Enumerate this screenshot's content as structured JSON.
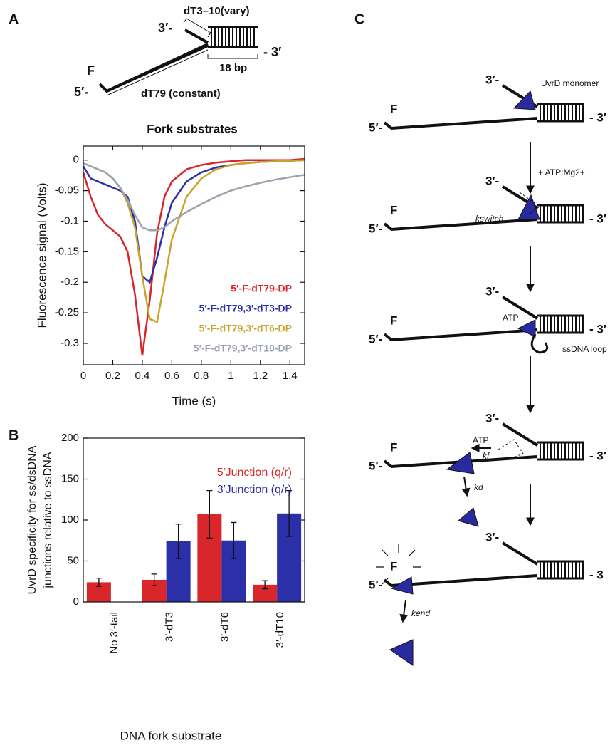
{
  "panel_labels": [
    "A",
    "B",
    "C"
  ],
  "diagram_a": {
    "labels": [
      "3′-",
      "dT3–10(vary)",
      "F",
      "5′-",
      "dT79 (constant)",
      "18 bp",
      "- 3′"
    ]
  },
  "chart_data": [
    {
      "type": "line",
      "title": "Fork substrates",
      "x_label": "Time (s)",
      "y_label": "Fluorescence signal (Volts)",
      "x": [
        0,
        0.05,
        0.1,
        0.15,
        0.2,
        0.25,
        0.3,
        0.35,
        0.4,
        0.45,
        0.5,
        0.55,
        0.6,
        0.7,
        0.8,
        0.9,
        1.0,
        1.1,
        1.2,
        1.3,
        1.4,
        1.5
      ],
      "xlim": [
        0,
        1.5
      ],
      "ylim": [
        -0.335,
        0.023
      ],
      "xticks": [
        0,
        0.2,
        0.4,
        0.6,
        0.8,
        1,
        1.2,
        1.4
      ],
      "yticks": [
        0,
        -0.05,
        -0.1,
        -0.15,
        -0.2,
        -0.25,
        -0.3
      ],
      "series": [
        {
          "name": "5′-F-dT79-DP",
          "color": "#d9262a",
          "values": [
            -0.02,
            -0.06,
            -0.09,
            -0.105,
            -0.115,
            -0.125,
            -0.15,
            -0.22,
            -0.32,
            -0.23,
            -0.12,
            -0.06,
            -0.035,
            -0.015,
            -0.008,
            -0.004,
            -0.002,
            0,
            0,
            0,
            0,
            0.002
          ]
        },
        {
          "name": "5′-F-dT79,3′-dT3-DP",
          "color": "#2b2fa8",
          "values": [
            -0.01,
            -0.03,
            -0.035,
            -0.04,
            -0.045,
            -0.05,
            -0.06,
            -0.1,
            -0.19,
            -0.2,
            -0.16,
            -0.11,
            -0.07,
            -0.035,
            -0.02,
            -0.012,
            -0.008,
            -0.005,
            -0.003,
            -0.002,
            -0.001,
            0
          ]
        },
        {
          "name": "5′-F-dT79,3′-dT6-DP",
          "color": "#c9a42a",
          "values": [
            -0.005,
            -0.01,
            -0.015,
            -0.02,
            -0.03,
            -0.045,
            -0.07,
            -0.11,
            -0.19,
            -0.26,
            -0.265,
            -0.2,
            -0.13,
            -0.06,
            -0.03,
            -0.015,
            -0.008,
            -0.005,
            -0.003,
            -0.002,
            -0.001,
            0
          ]
        },
        {
          "name": "5′-F-dT79,3′-dT10-DP",
          "color": "#9aa3ad",
          "values": [
            -0.005,
            -0.01,
            -0.015,
            -0.02,
            -0.03,
            -0.045,
            -0.065,
            -0.09,
            -0.11,
            -0.115,
            -0.115,
            -0.11,
            -0.1,
            -0.085,
            -0.072,
            -0.06,
            -0.05,
            -0.043,
            -0.037,
            -0.032,
            -0.028,
            -0.024
          ]
        }
      ]
    },
    {
      "type": "bar",
      "x_label": "DNA fork substrate",
      "y_label": [
        "UvrD specificity for ss/dsDNA",
        "junctions relative to ssDNA"
      ],
      "categories": [
        "No 3′-tail",
        "3′-dT3",
        "3′-dT6",
        "3′-dT10"
      ],
      "ylim": [
        0,
        200
      ],
      "yticks": [
        0,
        50,
        100,
        150,
        200
      ],
      "series": [
        {
          "name": "5′Junction (q/r)",
          "color": "#d9262a",
          "values": [
            24,
            27,
            107,
            21
          ],
          "errors": [
            5,
            7,
            29,
            5
          ]
        },
        {
          "name": "3′Junction (q/r)",
          "color": "#2b2fa8",
          "values": [
            null,
            74,
            75,
            108
          ],
          "errors": [
            null,
            21,
            22,
            28
          ]
        }
      ]
    }
  ],
  "diagram_c": {
    "steps": [
      {
        "labels": [
          "3′-",
          "F",
          "5′-",
          "- 3′",
          "UvrD monomer"
        ]
      },
      {
        "labels": [
          "3′-",
          "F",
          "5′-",
          "- 3′",
          "kswitch"
        ]
      },
      {
        "labels": [
          "3′-",
          "F",
          "5′-",
          "- 3′",
          "ATP",
          "ssDNA loop"
        ]
      },
      {
        "labels": [
          "3′-",
          "F",
          "5′-",
          "- 3′",
          "ATP",
          "kf",
          "kd"
        ]
      },
      {
        "labels": [
          "3′-",
          "F",
          "5′-",
          "- 3",
          "kend"
        ]
      }
    ],
    "arrow_labels": [
      "+ ATP:Mg2+"
    ]
  }
}
